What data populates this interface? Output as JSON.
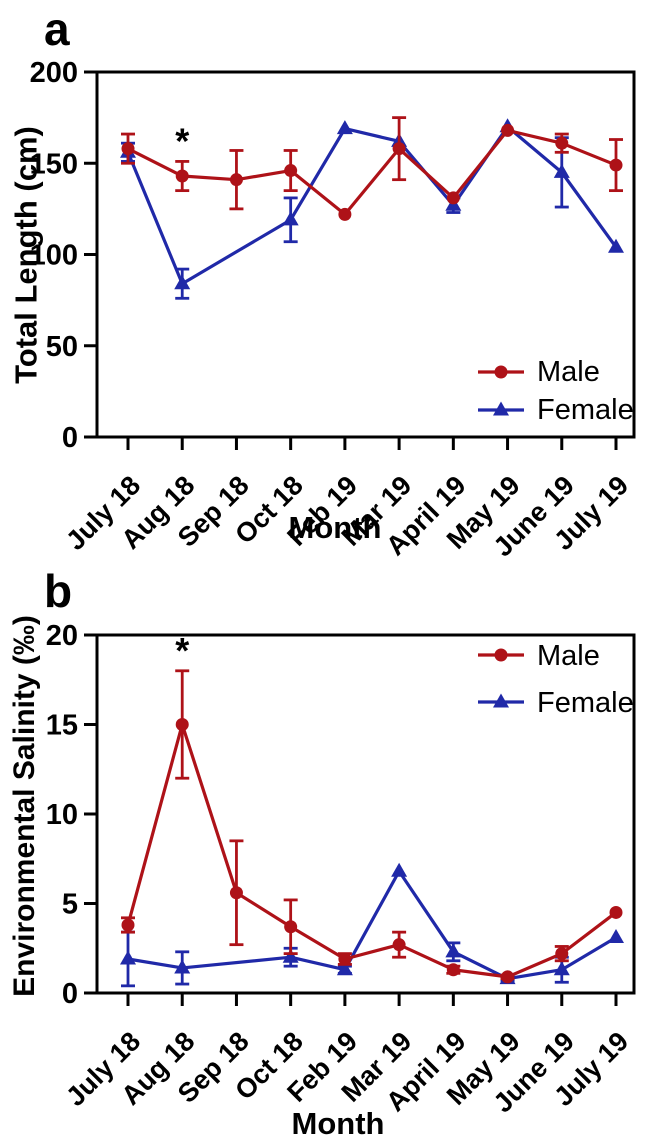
{
  "figure": {
    "panels": [
      {
        "panel_label": "a",
        "chart_data": {
          "type": "line",
          "xlabel": "Month",
          "ylabel": "Total Length (cm)",
          "ylim": [
            0,
            200
          ],
          "yticks": [
            0,
            50,
            100,
            150,
            200
          ],
          "grid": false,
          "legend_position": "bottom-right",
          "categories": [
            "July 18",
            "Aug 18",
            "Sep 18",
            "Oct 18",
            "Feb 19",
            "Mar 19",
            "April 19",
            "May 19",
            "June 19",
            "July 19"
          ],
          "series": [
            {
              "name": "Male",
              "color": "#AE1218",
              "marker": "circle",
              "values": [
                158,
                143,
                141,
                146,
                122,
                158,
                131,
                168,
                161,
                149
              ],
              "errors": [
                8,
                8,
                16,
                11,
                0,
                17,
                0,
                0,
                5,
                14
              ]
            },
            {
              "name": "Female",
              "color": "#2029A8",
              "marker": "triangle",
              "values": [
                156,
                84,
                null,
                119,
                169,
                162,
                127,
                170,
                145,
                104
              ],
              "errors": [
                5,
                8,
                null,
                12,
                0,
                0,
                4,
                0,
                19,
                0
              ]
            }
          ],
          "annotations": [
            {
              "text": "*",
              "category": "Aug 18",
              "series": "Male"
            }
          ]
        }
      },
      {
        "panel_label": "b",
        "chart_data": {
          "type": "line",
          "xlabel": "Month",
          "ylabel": "Environmental Salinity (‰)",
          "ylim": [
            0,
            20
          ],
          "yticks": [
            0,
            5,
            10,
            15,
            20
          ],
          "grid": false,
          "legend_position": "top-right",
          "categories": [
            "July 18",
            "Aug 18",
            "Sep 18",
            "Oct 18",
            "Feb 19",
            "Mar 19",
            "April 19",
            "May 19",
            "June 19",
            "July 19"
          ],
          "series": [
            {
              "name": "Male",
              "color": "#AE1218",
              "marker": "circle",
              "values": [
                3.8,
                15.0,
                5.6,
                3.7,
                1.9,
                2.7,
                1.3,
                0.9,
                2.2,
                4.5
              ],
              "errors": [
                0.4,
                3.0,
                2.9,
                1.5,
                0.3,
                0.7,
                0.2,
                0.1,
                0.4,
                0
              ]
            },
            {
              "name": "Female",
              "color": "#2029A8",
              "marker": "triangle",
              "values": [
                1.9,
                1.4,
                null,
                2.0,
                1.3,
                6.8,
                2.3,
                0.8,
                1.3,
                3.1
              ],
              "errors": [
                1.5,
                0.9,
                null,
                0.5,
                0.2,
                0,
                0.5,
                0.1,
                0.7,
                0
              ]
            }
          ],
          "annotations": [
            {
              "text": "*",
              "category": "Aug 18",
              "series": "Male"
            }
          ]
        }
      }
    ],
    "colors": {
      "male": "#AE1218",
      "female": "#2029A8",
      "axis": "#000000"
    }
  }
}
